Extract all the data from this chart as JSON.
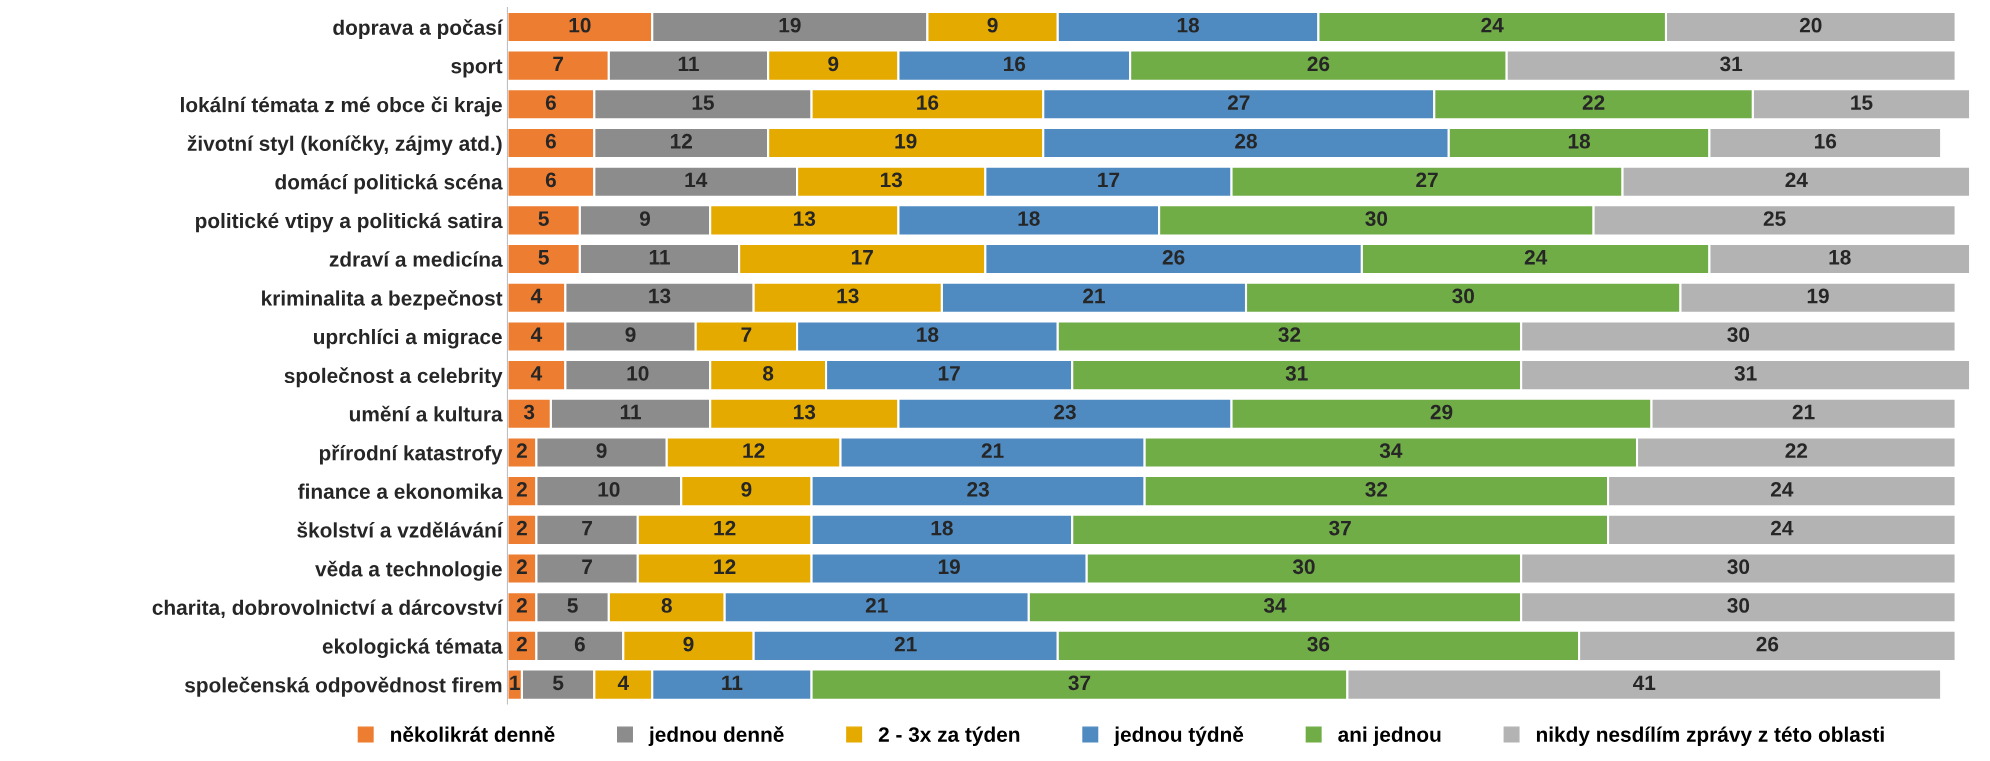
{
  "chart_data": {
    "type": "bar",
    "orientation": "horizontal",
    "stacked": true,
    "data_labels": true,
    "legend": "bottom",
    "grid": false,
    "tick_labels": "y",
    "categories": [
      "doprava a počasí",
      "sport",
      "lokální témata z mé obce či kraje",
      "životní styl (koníčky, zájmy atd.)",
      "domácí politická scéna",
      "politické vtipy a politická satira",
      "zdraví a medicína",
      "kriminalita a bezpečnost",
      "uprchlíci a migrace",
      "společnost a celebrity",
      "umění a kultura",
      "přírodní katastrofy",
      "finance a ekonomika",
      "školství a vzdělávání",
      "věda a technologie",
      "charita, dobrovolnictví a dárcovství",
      "ekologická témata",
      "společenská odpovědnost firem"
    ],
    "series": [
      {
        "name": "několikrát denně",
        "color": "#ed7d31",
        "values": [
          10,
          7,
          6,
          6,
          6,
          5,
          5,
          4,
          4,
          4,
          3,
          2,
          2,
          2,
          2,
          2,
          2,
          1
        ]
      },
      {
        "name": "jednou denně",
        "color": "#8c8c8c",
        "values": [
          19,
          11,
          15,
          12,
          14,
          9,
          11,
          13,
          9,
          10,
          11,
          9,
          10,
          7,
          7,
          5,
          6,
          5
        ]
      },
      {
        "name": "2 - 3x za týden",
        "color": "#e5aa00",
        "values": [
          9,
          9,
          16,
          19,
          13,
          13,
          17,
          13,
          7,
          8,
          13,
          12,
          9,
          12,
          12,
          8,
          9,
          4
        ]
      },
      {
        "name": "jednou týdně",
        "color": "#4f8bc1",
        "values": [
          18,
          16,
          27,
          28,
          17,
          18,
          26,
          21,
          18,
          17,
          23,
          21,
          23,
          18,
          19,
          21,
          21,
          11
        ]
      },
      {
        "name": "ani jednou",
        "color": "#70ad47",
        "values": [
          24,
          26,
          22,
          18,
          27,
          30,
          24,
          30,
          32,
          31,
          29,
          34,
          32,
          37,
          30,
          34,
          36,
          37
        ]
      },
      {
        "name": "nikdy nesdílím zprávy z této oblasti",
        "color": "#b3b3b3",
        "values": [
          20,
          31,
          15,
          16,
          24,
          25,
          18,
          19,
          30,
          31,
          21,
          22,
          24,
          24,
          30,
          30,
          26,
          41
        ]
      }
    ]
  }
}
